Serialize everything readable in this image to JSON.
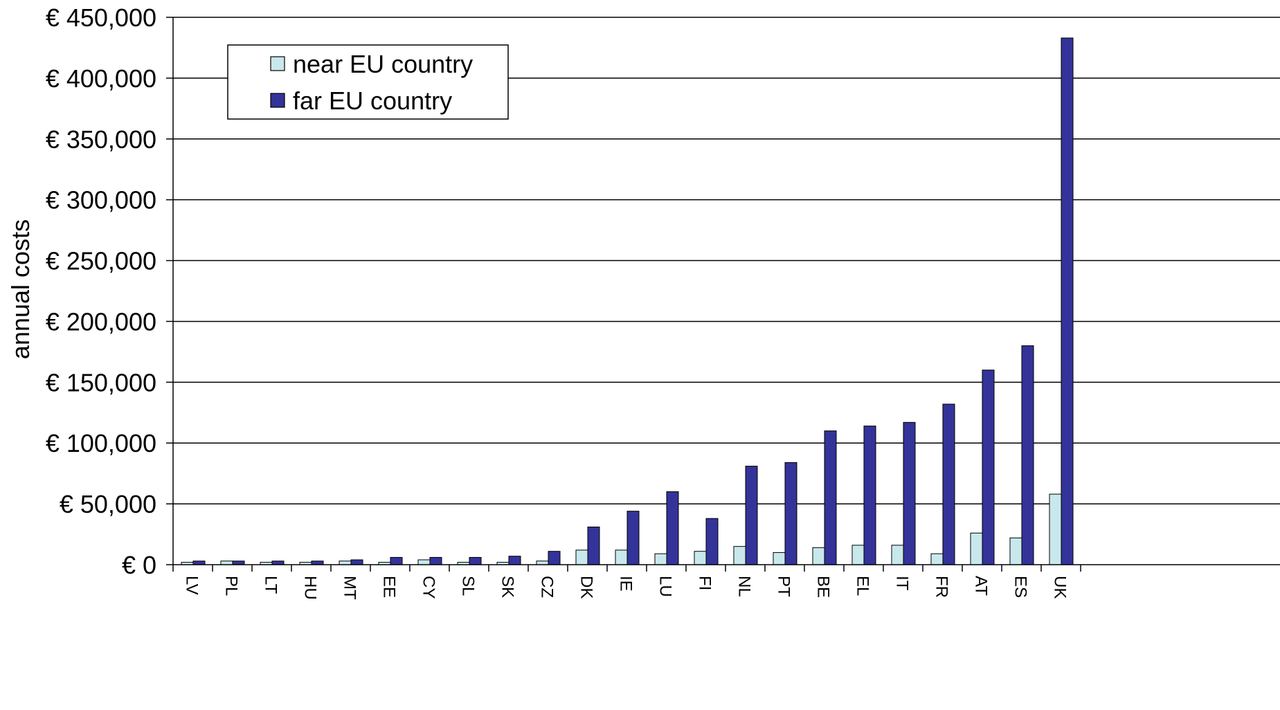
{
  "chart_data": {
    "type": "bar",
    "title": "",
    "xlabel": "",
    "ylabel": "annual costs",
    "ylim": [
      0,
      450000
    ],
    "yticks": [
      0,
      50000,
      100000,
      150000,
      200000,
      250000,
      300000,
      350000,
      400000,
      450000
    ],
    "ytick_labels": [
      "€ 0",
      "€ 50,000",
      "€ 100,000",
      "€ 150,000",
      "€ 200,000",
      "€ 250,000",
      "€ 300,000",
      "€ 350,000",
      "€ 400,000",
      "€ 450,000"
    ],
    "grid": true,
    "legend_position": "top-left",
    "categories": [
      "LV",
      "PL",
      "LT",
      "HU",
      "MT",
      "EE",
      "CY",
      "SL",
      "SK",
      "CZ",
      "DK",
      "IE",
      "LU",
      "FI",
      "NL",
      "PT",
      "BE",
      "EL",
      "IT",
      "FR",
      "AT",
      "ES",
      "UK"
    ],
    "series": [
      {
        "name": "near EU country",
        "color": "#c8e8ec",
        "values": [
          2000,
          3000,
          2000,
          2000,
          3000,
          2000,
          4000,
          2000,
          2000,
          3000,
          12000,
          12000,
          9000,
          11000,
          15000,
          10000,
          14000,
          16000,
          16000,
          9000,
          26000,
          22000,
          58000
        ]
      },
      {
        "name": "far EU country",
        "color": "#333399",
        "values": [
          3000,
          3000,
          3000,
          3000,
          4000,
          6000,
          6000,
          6000,
          7000,
          11000,
          31000,
          44000,
          60000,
          38000,
          81000,
          84000,
          110000,
          114000,
          117000,
          132000,
          160000,
          180000,
          433000
        ]
      }
    ]
  }
}
